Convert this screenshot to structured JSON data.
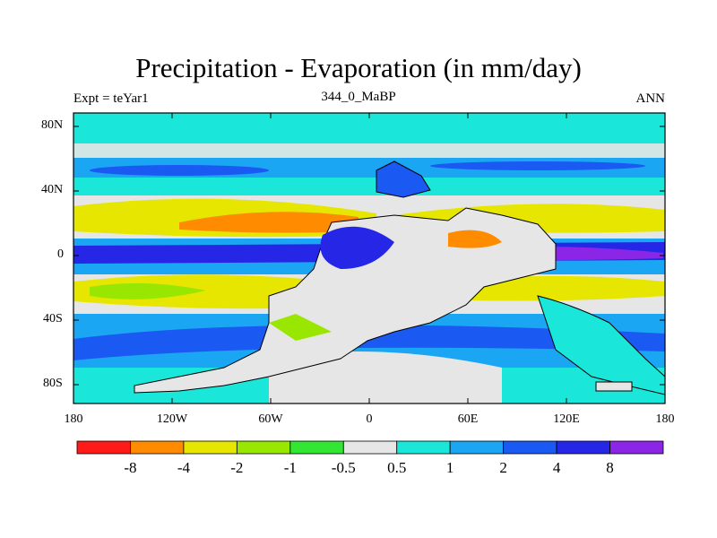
{
  "title": "Precipitation - Evaporation (in mm/day)",
  "experiment": "Expt = teYar1",
  "case_name": "344_0_MaBP",
  "season": "ANN",
  "lat_ticks": [
    "80N",
    "40N",
    "0",
    "40S",
    "80S"
  ],
  "lon_ticks": [
    "180",
    "120W",
    "60W",
    "0",
    "60E",
    "120E",
    "180"
  ],
  "colorbar": {
    "colors": [
      "#ff1a1a",
      "#ff8c00",
      "#e6e600",
      "#99e600",
      "#33e633",
      "#e6e6e6",
      "#1ae6d9",
      "#1aa6f2",
      "#1a59f2",
      "#2626e6",
      "#8c26e6"
    ],
    "labels": [
      "-8",
      "-4",
      "-2",
      "-1",
      "-0.5",
      "0.5",
      "1",
      "2",
      "4",
      "8"
    ]
  }
}
